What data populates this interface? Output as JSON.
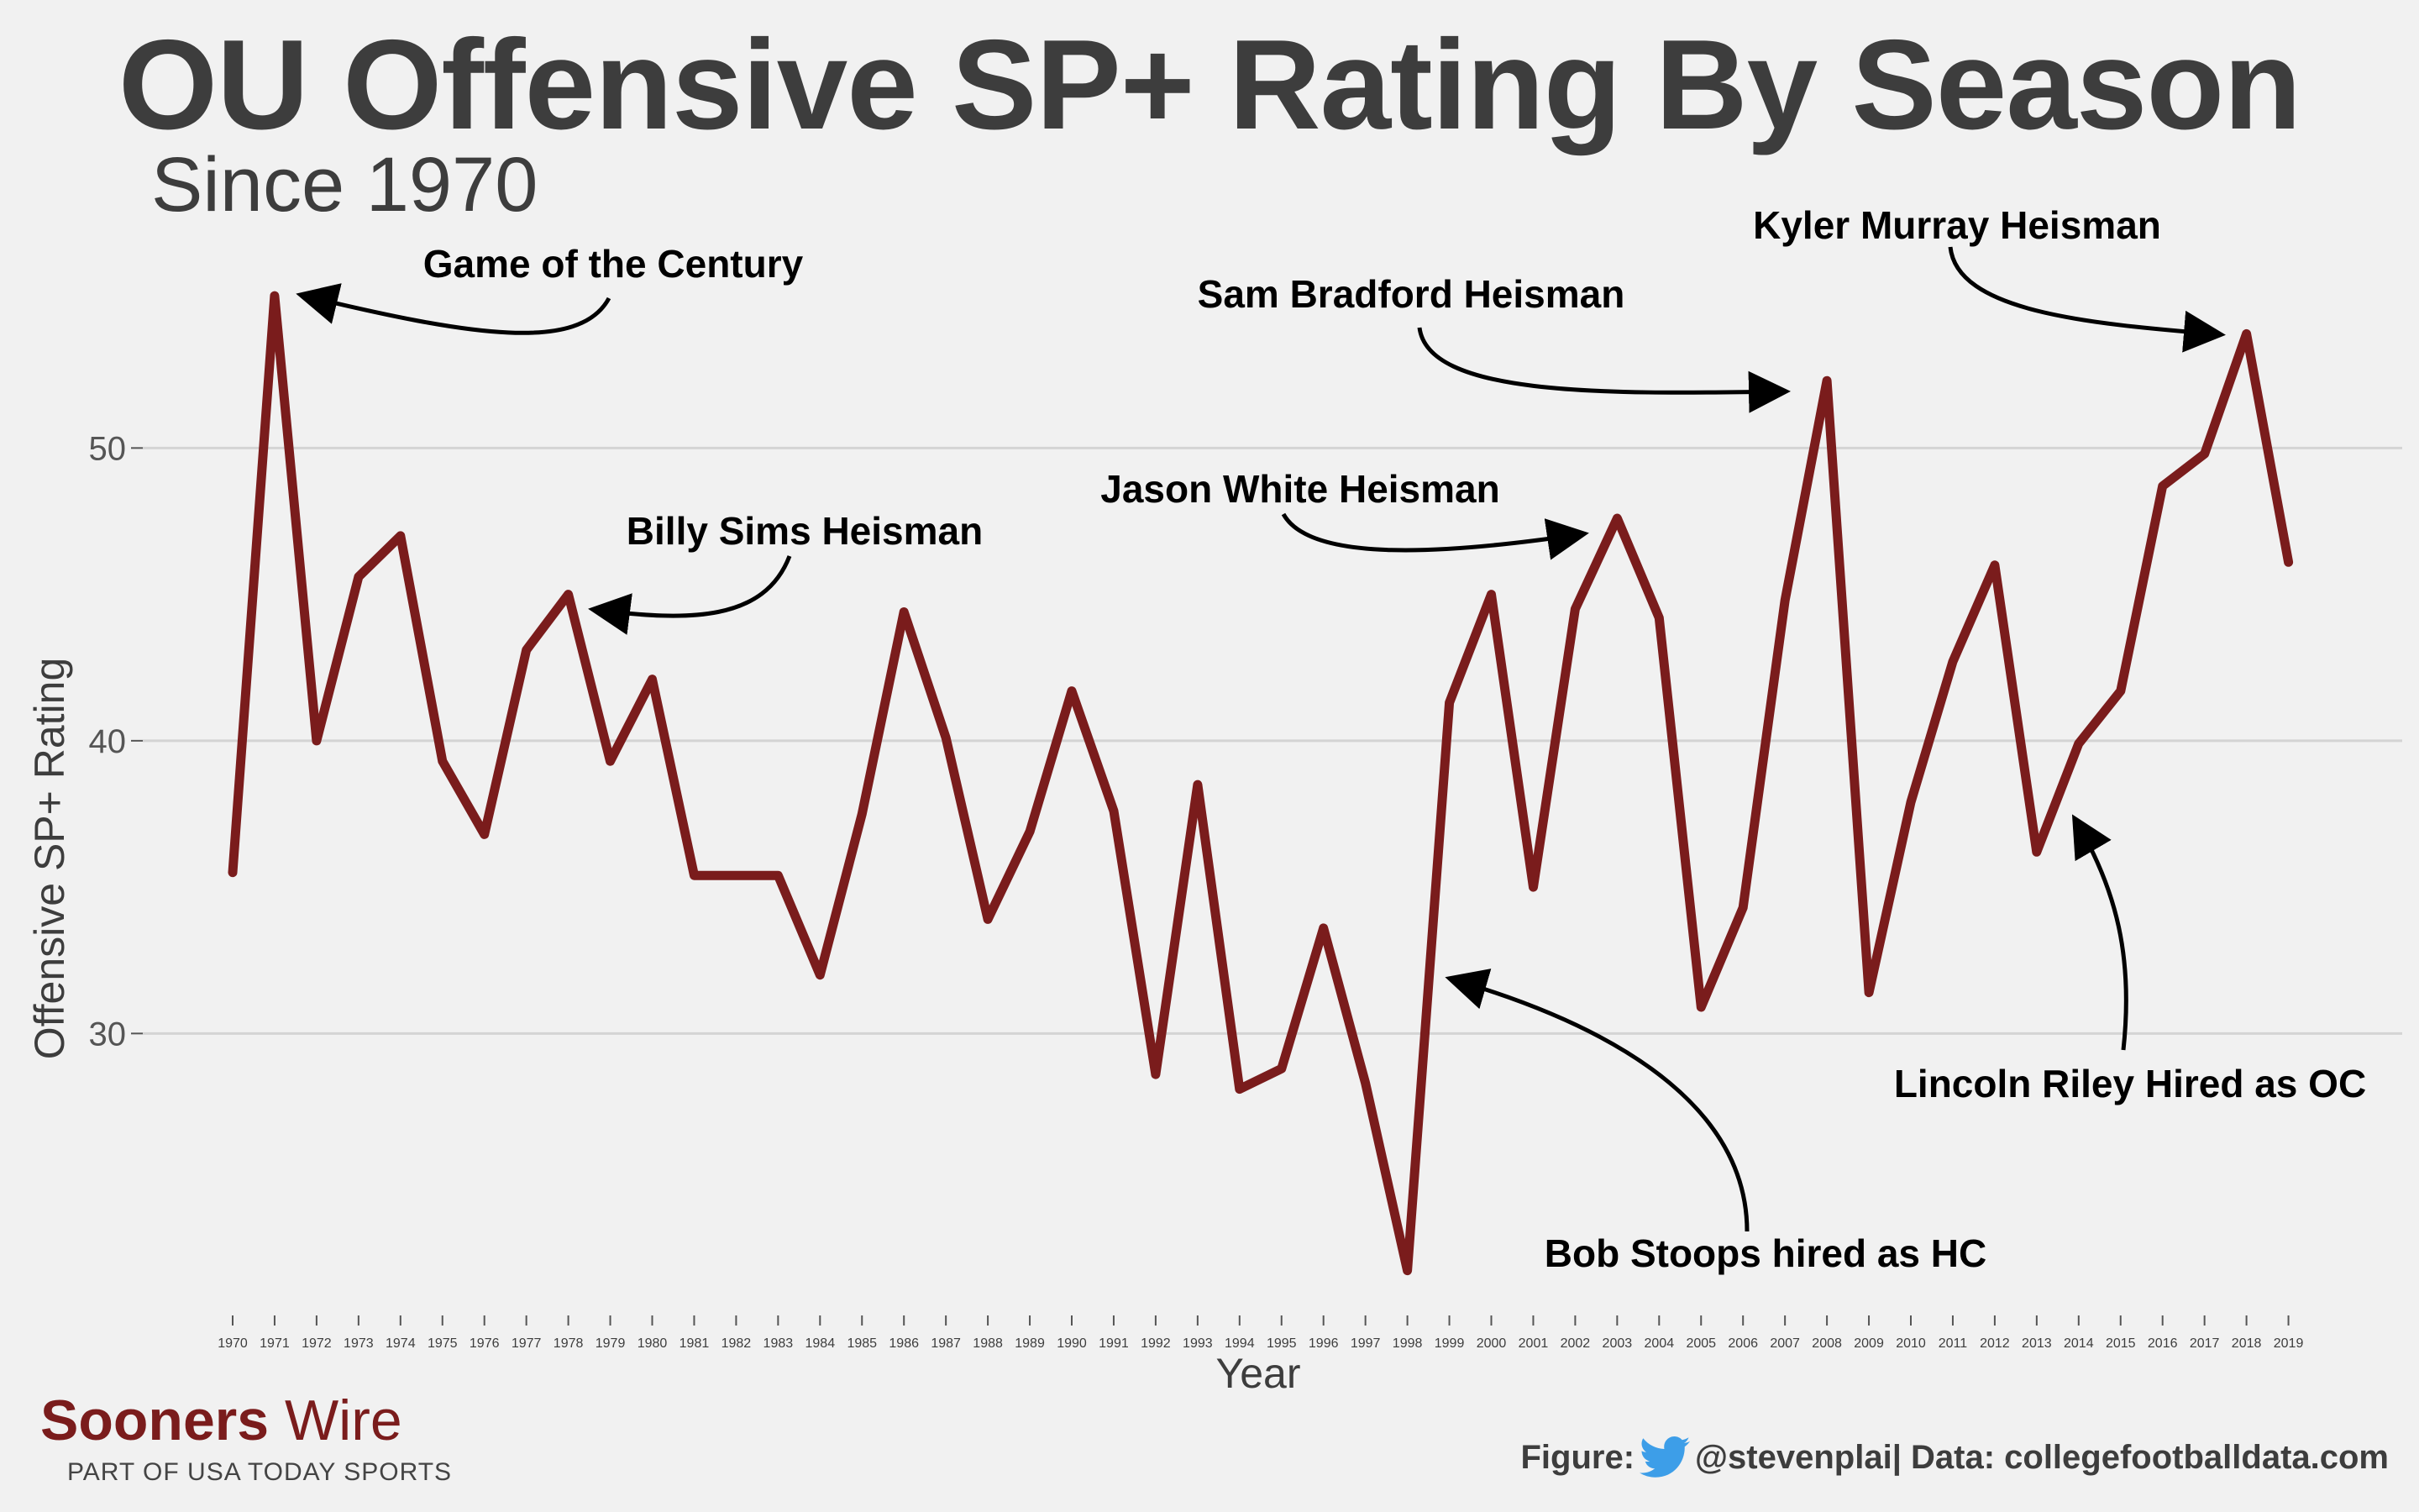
{
  "colors": {
    "background": "#f1f1f1",
    "line": "#7a1c1c",
    "text": "#3d3d3d",
    "grid": "#d4d4d4",
    "twitter": "#3d9ee8"
  },
  "branding": {
    "name_bold": "Sooners",
    "name_light": " Wire",
    "tagline": "PART OF USA TODAY SPORTS",
    "credit_prefix": "Figure:",
    "credit_handle": "@stevenplai",
    "credit_data": " | Data: collegefootballdata.com",
    "icon": "twitter-bird-icon"
  },
  "chart_data": {
    "type": "line",
    "title": "OU Offensive SP+ Rating By Season",
    "subtitle": "Since 1970",
    "xlabel": "Year",
    "ylabel": "Offensive SP+ Rating",
    "ylim": [
      21,
      57
    ],
    "yticks": [
      30,
      40,
      50
    ],
    "grid": "horizontal",
    "x": [
      1970,
      1971,
      1972,
      1973,
      1974,
      1975,
      1976,
      1977,
      1978,
      1979,
      1980,
      1981,
      1982,
      1983,
      1984,
      1985,
      1986,
      1987,
      1988,
      1989,
      1990,
      1991,
      1992,
      1993,
      1994,
      1995,
      1996,
      1997,
      1998,
      1999,
      2000,
      2001,
      2002,
      2003,
      2004,
      2005,
      2006,
      2007,
      2008,
      2009,
      2010,
      2011,
      2012,
      2013,
      2014,
      2015,
      2016,
      2017,
      2018,
      2019
    ],
    "xtick_labels": [
      "1970",
      "1971",
      "1972",
      "1973",
      "1974",
      "1975",
      "1976",
      "1977",
      "1978",
      "1979",
      "1980",
      "1981",
      "1982",
      "1983",
      "1984",
      "1985",
      "1986",
      "1987",
      "1988",
      "1989",
      "1990",
      "1991",
      "1992",
      "1993",
      "1994",
      "1995",
      "1996",
      "1997",
      "1998",
      "1999",
      "2000",
      "2001",
      "2002",
      "2003",
      "2004",
      "2005",
      "2006",
      "2007",
      "2008",
      "2009",
      "2010",
      "2011",
      "2012",
      "2013",
      "2014",
      "2015",
      "2016",
      "2017",
      "2018",
      "2019"
    ],
    "series": [
      {
        "values": [
          35.5,
          55.2,
          40.0,
          45.6,
          47.0,
          39.3,
          36.8,
          43.1,
          45.0,
          39.3,
          42.1,
          35.4,
          35.4,
          35.4,
          32.0,
          37.5,
          44.4,
          40.1,
          33.9,
          36.9,
          41.7,
          37.6,
          28.6,
          38.5,
          28.1,
          28.8,
          33.6,
          28.3,
          21.9,
          41.3,
          45.0,
          35.0,
          44.5,
          47.6,
          44.2,
          30.9,
          34.3,
          44.8,
          52.3,
          31.4,
          37.9,
          42.7,
          46.0,
          36.2,
          39.9,
          41.7,
          48.7,
          49.8,
          53.9,
          46.1
        ]
      }
    ],
    "annotations": [
      {
        "text": "Game of the Century",
        "year": 1971,
        "value": 55.2
      },
      {
        "text": "Billy Sims Heisman",
        "year": 1978,
        "value": 45.0
      },
      {
        "text": "Jason White Heisman",
        "year": 2003,
        "value": 47.6
      },
      {
        "text": "Sam Bradford Heisman",
        "year": 2008,
        "value": 52.3
      },
      {
        "text": "Kyler Murray Heisman",
        "year": 2018,
        "value": 53.9
      },
      {
        "text": "Bob Stoops hired as HC",
        "year": 1999,
        "value": 41.3
      },
      {
        "text": "Lincoln Riley Hired as OC",
        "year": 2014,
        "value": 39.9
      }
    ]
  }
}
